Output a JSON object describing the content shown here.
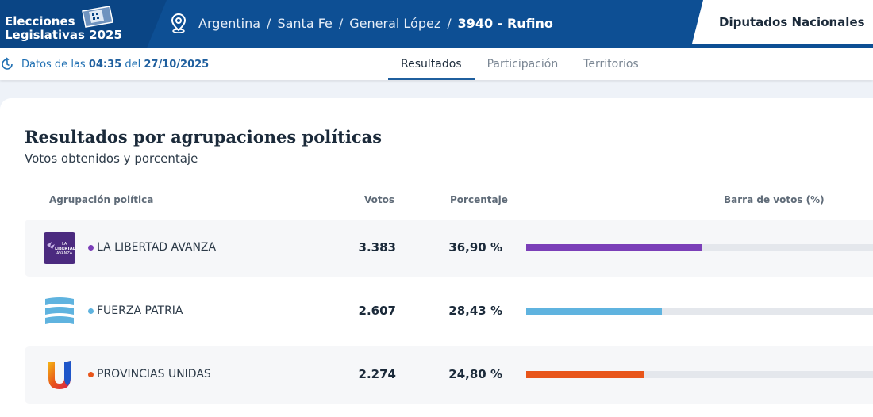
{
  "header": {
    "brand_line1": "Elecciones",
    "brand_line2": "Legislativas 2025",
    "breadcrumb": [
      "Argentina",
      "Santa Fe",
      "General López"
    ],
    "breadcrumb_current": "3940 - Rufino",
    "chamber": "Diputados Nacionales",
    "bar_color": "#0d4f94"
  },
  "subbar": {
    "updated_prefix": "Datos de las",
    "updated_time": "04:35",
    "updated_mid": "del",
    "updated_date": "27/10/2025",
    "tabs": [
      {
        "label": "Resultados",
        "active": true
      },
      {
        "label": "Participación",
        "active": false
      },
      {
        "label": "Territorios",
        "active": false
      }
    ]
  },
  "results": {
    "title": "Resultados por agrupaciones políticas",
    "subtitle": "Votos obtenidos y porcentaje",
    "columns": {
      "party": "Agrupación política",
      "votes": "Votos",
      "percent": "Porcentaje",
      "bar": "Barra de votos (%)"
    },
    "rows": [
      {
        "name": "LA LIBERTAD AVANZA",
        "logo_icon": "la-libertad-avanza-logo",
        "logo_text": "LA LIBERTAD AVANZA",
        "votes": "3.383",
        "percent": "36,90 %",
        "value": 36.9,
        "color": "#7b3fb8"
      },
      {
        "name": "FUERZA PATRIA",
        "logo_icon": "fuerza-patria-logo",
        "votes": "2.607",
        "percent": "28,43 %",
        "value": 28.43,
        "color": "#5fb3df"
      },
      {
        "name": "PROVINCIAS UNIDAS",
        "logo_icon": "provincias-unidas-logo",
        "votes": "2.274",
        "percent": "24,80 %",
        "value": 24.8,
        "color": "#e8551a"
      }
    ]
  }
}
